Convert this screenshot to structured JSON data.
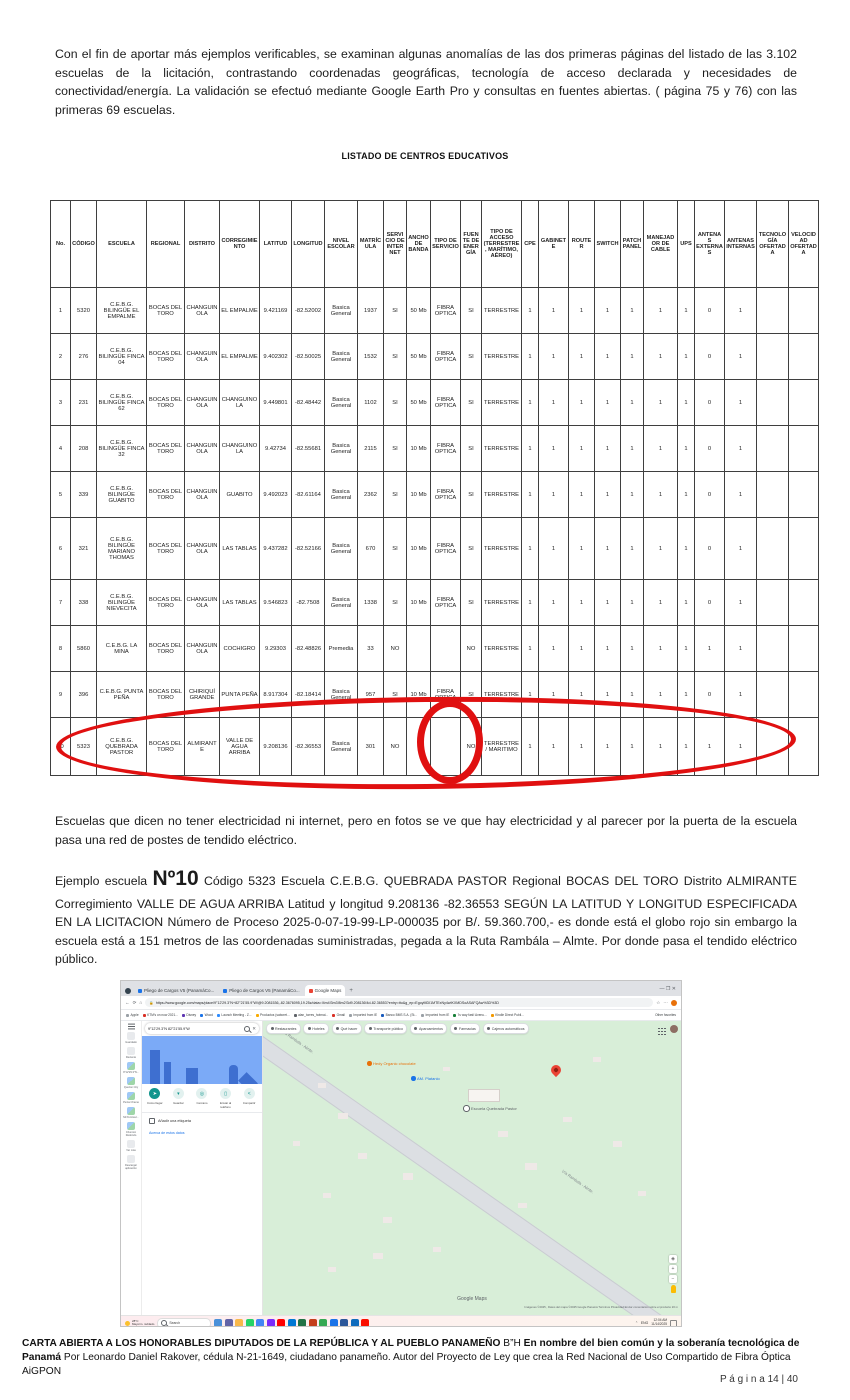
{
  "doc": {
    "para1": "Con el fin de aportar más ejemplos verificables, se examinan algunas anomalías de las dos primeras páginas del listado de las 3.102 escuelas de la licitación, contrastando coordenadas geográficas, tecnología de acceso declarada y necesidades de conectividad/energía. La validación se efectuó mediante Google Earth Pro y consultas en fuentes abiertas. ( página 75 y 76) con las primeras 69 escuelas.",
    "table_title": "LISTADO DE CENTROS EDUCATIVOS",
    "para2": "Escuelas que dicen no tener electricidad ni internet, pero en fotos se ve que hay electricidad y al parecer por  la puerta de la escuela pasa  una red de postes de tendido eléctrico.",
    "example": {
      "prefix": "Ejemplo escuela ",
      "big": "Nº10",
      "rest": " Código 5323 Escuela C.E.B.G. QUEBRADA PASTOR  Regional  BOCAS DEL TORO  Distrito ALMIRANTE  Corregimiento VALLE DE AGUA ARRIBA  Latitud y longitud 9.208136 -82.36553 SEGÚN LA LATITUD Y LONGITUD ESPECIFICADA EN LA LICITACION Número de Proceso 2025-0-07-19-99-LP-000035  por B/. 59.360.700,- es donde está el globo rojo sin embargo la escuela está a 151 metros de las coordenadas suministradas,  pegada a la Ruta Rambála – Almte. Por donde pasa el tendido eléctrico público."
    },
    "footer": {
      "seg1": "CARTA ABIERTA A LOS HONORABLES DIPUTADOS DE LA REPÚBLICA Y AL PUEBLO PANAMEÑO",
      "seg2": " B”H ",
      "seg3": "En nombre del bien común y la soberanía tecnológica de Panamá",
      "seg4": " Por Leonardo Daniel Rakover, cédula N-21-1649, ciudadano panameño. Autor del Proyecto de Ley que crea la Red Nacional de Uso Compartido de Fibra Óptica AiGPON",
      "page": "P á g i n a  14 | 40"
    }
  },
  "table": {
    "columns": [
      "No.",
      "CÓDIGO",
      "ESCUELA",
      "REGIONAL",
      "DISTRITO",
      "CORREGIMIENTO",
      "LATITUD",
      "LONGITUD",
      "NIVEL ESCOLAR",
      "MATRÍCULA",
      "SERVICIO DE INTERNET",
      "ANCHO DE BANDA",
      "TIPO DE SERVICIO",
      "FUENTE DE ENERGÍA",
      "TIPO DE ACCESO (TERRESTRE, MARÍTIMO, AÉREO)",
      "CPE",
      "GABINETE",
      "ROUTER",
      "SWITCH",
      "PATCH PANEL",
      "MANEJADOR DE CABLE",
      "UPS",
      "ANTENAS EXTERNAS",
      "ANTENAS INTERNAS",
      "TECNOLOGÍA OFERTADA",
      "VELOCIDAD OFERTADA"
    ],
    "rows": [
      [
        "1",
        "5320",
        "C.E.B.G. BILINGÜE EL EMPALME",
        "BOCAS DEL TORO",
        "CHANGUINOLA",
        "EL EMPALME",
        "9.421169",
        "-82.52002",
        "Basica General",
        "1937",
        "SI",
        "50 Mb",
        "FIBRA OPTICA",
        "SI",
        "TERRESTRE",
        "1",
        "1",
        "1",
        "1",
        "1",
        "1",
        "1",
        "0",
        "1",
        "",
        ""
      ],
      [
        "2",
        "276",
        "C.E.B.G. BILINGÜE FINCA 04",
        "BOCAS DEL TORO",
        "CHANGUINOLA",
        "EL EMPALME",
        "9.402302",
        "-82.50025",
        "Basica General",
        "1532",
        "SI",
        "50 Mb",
        "FIBRA OPTICA",
        "SI",
        "TERRESTRE",
        "1",
        "1",
        "1",
        "1",
        "1",
        "1",
        "1",
        "0",
        "1",
        "",
        ""
      ],
      [
        "3",
        "231",
        "C.E.B.G. BILINGÜE FINCA 62",
        "BOCAS DEL TORO",
        "CHANGUINOLA",
        "CHANGUINOLA",
        "9.449801",
        "-82.48442",
        "Basica General",
        "1102",
        "SI",
        "50 Mb",
        "FIBRA OPTICA",
        "SI",
        "TERRESTRE",
        "1",
        "1",
        "1",
        "1",
        "1",
        "1",
        "1",
        "0",
        "1",
        "",
        ""
      ],
      [
        "4",
        "208",
        "C.E.B.G. BILINGÜE FINCA 32",
        "BOCAS DEL TORO",
        "CHANGUINOLA",
        "CHANGUINOLA",
        "9.42734",
        "-82.55681",
        "Basica General",
        "2115",
        "SI",
        "10 Mb",
        "FIBRA OPTICA",
        "SI",
        "TERRESTRE",
        "1",
        "1",
        "1",
        "1",
        "1",
        "1",
        "1",
        "0",
        "1",
        "",
        ""
      ],
      [
        "5",
        "339",
        "C.E.B.G. BILINGÜE GUABITO",
        "BOCAS DEL TORO",
        "CHANGUINOLA",
        "GUABITO",
        "9.492023",
        "-82.61164",
        "Basica General",
        "2362",
        "SI",
        "10 Mb",
        "FIBRA OPTICA",
        "SI",
        "TERRESTRE",
        "1",
        "1",
        "1",
        "1",
        "1",
        "1",
        "1",
        "0",
        "1",
        "",
        ""
      ],
      [
        "6",
        "321",
        "C.E.B.G. BILINGÜE MARIANO THOMAS",
        "BOCAS DEL TORO",
        "CHANGUINOLA",
        "LAS TABLAS",
        "9.437282",
        "-82.52166",
        "Basica General",
        "670",
        "SI",
        "10 Mb",
        "FIBRA OPTICA",
        "SI",
        "TERRESTRE",
        "1",
        "1",
        "1",
        "1",
        "1",
        "1",
        "1",
        "0",
        "1",
        "",
        ""
      ],
      [
        "7",
        "338",
        "C.E.B.G. BILINGÜE NIEVECITA",
        "BOCAS DEL TORO",
        "CHANGUINOLA",
        "LAS TABLAS",
        "9.546823",
        "-82.7508",
        "Basica General",
        "1338",
        "SI",
        "10 Mb",
        "FIBRA OPTICA",
        "SI",
        "TERRESTRE",
        "1",
        "1",
        "1",
        "1",
        "1",
        "1",
        "1",
        "0",
        "1",
        "",
        ""
      ],
      [
        "8",
        "5860",
        "C.E.B.G. LA MINA",
        "BOCAS DEL TORO",
        "CHANGUINOLA",
        "COCHIGRO",
        "9.29303",
        "-82.48826",
        "Premedia",
        "33",
        "NO",
        "",
        "",
        "NO",
        "TERRESTRE",
        "1",
        "1",
        "1",
        "1",
        "1",
        "1",
        "1",
        "1",
        "1",
        "",
        ""
      ],
      [
        "9",
        "396",
        "C.E.B.G. PUNTA PEÑA",
        "BOCAS DEL TORO",
        "CHIRIQUÍ GRANDE",
        "PUNTA PEÑA",
        "8.917304",
        "-82.18414",
        "Basica General",
        "957",
        "SI",
        "10 Mb",
        "FIBRA OPTICA",
        "SI",
        "TERRESTRE",
        "1",
        "1",
        "1",
        "1",
        "1",
        "1",
        "1",
        "0",
        "1",
        "",
        ""
      ],
      [
        "10",
        "5323",
        "C.E.B.G. QUEBRADA PASTOR",
        "BOCAS DEL TORO",
        "ALMIRANTE",
        "VALLE DE AGUA ARRIBA",
        "9.208136",
        "-82.36553",
        "Basica General",
        "301",
        "NO",
        "",
        "",
        "NO",
        "TERRESTRE / MARITIMO",
        "1",
        "1",
        "1",
        "1",
        "1",
        "1",
        "1",
        "1",
        "1",
        "",
        ""
      ]
    ]
  },
  "annotations": {
    "highlight_color": "#e01010"
  },
  "browser": {
    "tabs": [
      {
        "label": "Pliego de Cargos V5 (PanamáCo...",
        "active": false,
        "fav": "#1a73e8"
      },
      {
        "label": "Pliego de Cargos V5 (PanamáCo...",
        "active": false,
        "fav": "#1a73e8"
      },
      {
        "label": "Google Maps",
        "active": true,
        "fav": "#ea4335"
      }
    ],
    "new_tab": "+",
    "window_controls": "—   ❐   ✕",
    "url": "https://www.google.com/maps/place/9°12'29.3\"N+82°21'55.9\"W/@9.2081536,-82.3676095,19.25z/data=!4m4!3m3!8m2!3d9.208136!4d-82.36553?entry=ttu&g_ep=EgoyMDI1MTExNy4wIKXMDSoASAFQAw%3D%3D",
    "bookmarks": [
      {
        "label": "Apple",
        "c": "#9aa0a6"
      },
      {
        "label": "KTM's on now 2021...",
        "c": "#d93025"
      },
      {
        "label": "Disney",
        "c": "#5e35b1"
      },
      {
        "label": "Wood",
        "c": "#1a73e8"
      },
      {
        "label": "Launch Meeting - Z...",
        "c": "#2d8cff"
      },
      {
        "label": "Productos (saboret...",
        "c": "#f9ab00"
      },
      {
        "label": "alan_torres_hotmai...",
        "c": "#5f6368"
      },
      {
        "label": "Gmail",
        "c": "#d93025"
      },
      {
        "label": "Imported from IE",
        "c": "#9aa0a6"
      },
      {
        "label": "Banco BMS S.A. (St...",
        "c": "#185abc"
      },
      {
        "label": "Imported from IE",
        "c": "#9aa0a6"
      },
      {
        "label": "'Is way fast! Avenu...",
        "c": "#188038"
      },
      {
        "label": "Kindle Direct Publi...",
        "c": "#f29900"
      }
    ],
    "other_favorites": "Other favorites"
  },
  "maps": {
    "search_value": "9°12'29.3\"N 82°21'55.9\"W",
    "actions": [
      {
        "label": "Cómo llegar",
        "primary": true,
        "glyph": "➤"
      },
      {
        "label": "Guardar",
        "primary": false,
        "glyph": "▾"
      },
      {
        "label": "Cercano",
        "primary": false,
        "glyph": "◎"
      },
      {
        "label": "Enviar al teléfono",
        "primary": false,
        "glyph": "▯"
      },
      {
        "label": "Compartir",
        "primary": false,
        "glyph": "<"
      }
    ],
    "add_label": "Añadir una etiqueta",
    "about_link": "Acerca de estos datos",
    "sidebar": [
      {
        "label": "Guardado",
        "kind": "ico"
      },
      {
        "label": "Reciente",
        "kind": "ico"
      },
      {
        "label": "9°12'29.3\"N...",
        "kind": "thumb"
      },
      {
        "label": "Quezon City",
        "kind": "thumb"
      },
      {
        "label": "Punta Chame",
        "kind": "thumb"
      },
      {
        "label": "Mi Peninsul...",
        "kind": "thumb"
      },
      {
        "label": "Chumico Redondo",
        "kind": "thumb"
      },
      {
        "label": "Ver más",
        "kind": "ico"
      },
      {
        "label": "Descargar aplicación",
        "kind": "ico"
      }
    ],
    "chips": [
      "Restaurantes",
      "Hoteles",
      "Qué hacer",
      "Transporte público",
      "Aparcamientos",
      "Farmacias",
      "Cajeros automáticos"
    ],
    "road_label": "Vía Rambala - Almte.",
    "poi_orange": "Hedy Organic chocolate",
    "poi_orange_color": "#e8710a",
    "poi_blue": "AM. Platanio",
    "poi_blue_color": "#1a73e8",
    "poi_school": "Escuela Quebrada Pastor",
    "poi_school_color": "#5f6368",
    "watermark": "Google Maps",
    "attribution": "Imágenes ©2025 , Datos del mapa ©2025 Google   Panamá   Términos   Privacidad   Enviar comentarios sobre el producto   20 m",
    "zoom_in": "+",
    "zoom_out": "−"
  },
  "taskbar": {
    "weather_temp": "28°C",
    "weather_desc": "Mayorm. nublado",
    "search": "Search",
    "icon_colors": [
      "#4a90d9",
      "#6264a7",
      "#f8b84a",
      "#25d366",
      "#4285f4",
      "#7b2bf9",
      "#ff0000",
      "#0078d4",
      "#217346",
      "#c43e1c",
      "#34a853",
      "#1a73e8",
      "#2b579a",
      "#0f6cbd",
      "#fa0f00"
    ],
    "tray_lang": "ENG",
    "time": "12:04 AM",
    "date": "11/14/2025"
  }
}
